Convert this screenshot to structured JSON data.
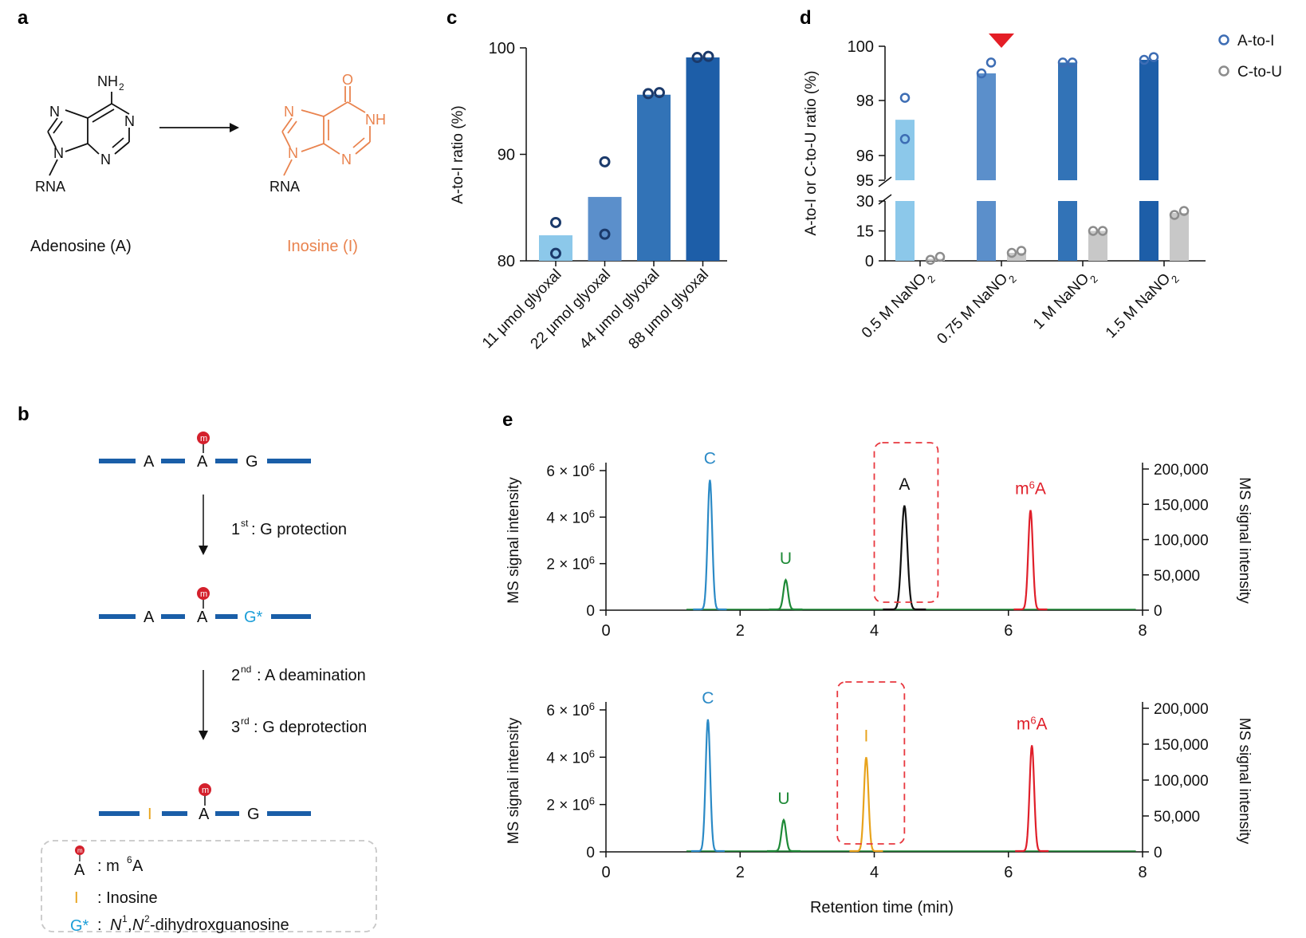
{
  "panels": {
    "a": {
      "label": "a",
      "adenosine": {
        "nh2": "NH",
        "nh2_sub": "2",
        "n_top": "N",
        "n_right": "N",
        "n_bottom": "N",
        "n9": "N",
        "rna": "RNA",
        "name": "Adenosine (A)"
      },
      "inosine": {
        "o": "O",
        "n_top": "N",
        "nh": "NH",
        "n_bottom": "N",
        "n9": "N",
        "rna": "RNA",
        "name": "Inosine (I)"
      },
      "colors": {
        "inosine": "#e9834e"
      }
    },
    "b": {
      "label": "b",
      "methyl": "m",
      "row1": [
        "A",
        "A",
        "G"
      ],
      "step1": {
        "sup": "st",
        "num": "1",
        "text": ": G protection"
      },
      "row2": [
        "A",
        "A",
        "G*"
      ],
      "step2": {
        "sup": "nd",
        "num": "2",
        "text": ": A deamination"
      },
      "step3": {
        "sup": "rd",
        "num": "3",
        "text": ": G deprotection"
      },
      "row3": [
        "I",
        "A",
        "G"
      ],
      "legend": {
        "m6a_glyph": "A",
        "m6a_text": ": m",
        "m6a_sup": "6",
        "m6a_tail": "A",
        "ino_glyph": "I",
        "ino_text": ": Inosine",
        "g_glyph": "G*",
        "g_text1": ": ",
        "g_n1": "N",
        "g_sup1": "1",
        "g_comma": ",",
        "g_n2": "N",
        "g_sup2": "2",
        "g_tail": "-dihydroxguanosine"
      },
      "colors": {
        "strand": "#1a5ea8",
        "methyl": "#d4202c",
        "inosine": "#e8a31c",
        "gstar": "#1c9ed8"
      }
    },
    "e": {
      "label": "e"
    }
  },
  "chart_data": [
    {
      "id": "c",
      "label": "c",
      "type": "bar",
      "categories": [
        "11 μmol glyoxal",
        "22 μmol glyoxal",
        "44 μmol glyoxal",
        "88 μmol glyoxal"
      ],
      "values": [
        82.4,
        86.0,
        95.6,
        99.1
      ],
      "points": [
        [
          83.6,
          80.7
        ],
        [
          89.3,
          82.5
        ],
        [
          95.7,
          95.8
        ],
        [
          99.1,
          99.2
        ]
      ],
      "ylabel": "A-to-I ratio (%)",
      "ylim": [
        80,
        100
      ],
      "yticks": [
        "80",
        "90",
        "100"
      ],
      "bar_colors": [
        "#8cc8ea",
        "#5b8fcb",
        "#3273b7",
        "#1d5ea8"
      ],
      "point_color": "#1b3a6b"
    },
    {
      "id": "d",
      "label": "d",
      "type": "bar",
      "categories": [
        "0.5 M NaNO",
        "0.75 M NaNO",
        "1 M NaNO",
        "1.5 M NaNO"
      ],
      "category_sub": "2",
      "ylabel": "A-to-I or C-to-U ratio (%)",
      "upper_ylim": [
        95,
        100
      ],
      "lower_ylim": [
        0,
        30
      ],
      "upper_ticks": [
        "95",
        "96",
        "98",
        "100"
      ],
      "lower_ticks": [
        "0",
        "15",
        "30"
      ],
      "series": [
        {
          "name": "A-to-I",
          "values": [
            97.3,
            99.0,
            99.4,
            99.5
          ],
          "points": [
            [
              98.1,
              96.6
            ],
            [
              99.0,
              99.4
            ],
            [
              99.4,
              99.4
            ],
            [
              99.5,
              99.6
            ]
          ],
          "color": "#3d6db4",
          "bar_colors": [
            "#8cc8ea",
            "#5b8fcb",
            "#3273b7",
            "#1d5ea8"
          ]
        },
        {
          "name": "C-to-U",
          "values": [
            1,
            4,
            15,
            24
          ],
          "points": [
            [
              0.5,
              2
            ],
            [
              4,
              5
            ],
            [
              15,
              15
            ],
            [
              23,
              25
            ]
          ],
          "color": "#8c8c8c",
          "bar_color": "#c8c8c8"
        }
      ],
      "marker_color": "#e41e26",
      "legend_placement": "top-right"
    },
    {
      "id": "e-top",
      "type": "line",
      "xlabel": "",
      "ylabel_left": "MS signal intensity",
      "ylabel_right": "MS signal intensity",
      "xlim": [
        0,
        8
      ],
      "xticks": [
        "0",
        "2",
        "4",
        "6",
        "8"
      ],
      "yticks_left": [
        {
          "coef": "0",
          "exp": ""
        },
        {
          "coef": "2 × 10",
          "exp": "6"
        },
        {
          "coef": "4 × 10",
          "exp": "6"
        },
        {
          "coef": "6 × 10",
          "exp": "6"
        }
      ],
      "yticks_right": [
        "0",
        "50,000",
        "100,000",
        "150,000",
        "200,000"
      ],
      "peaks": [
        {
          "name": "C",
          "sup": "",
          "rt": 1.55,
          "height": 5600000,
          "color": "#2b8ac6"
        },
        {
          "name": "U",
          "sup": "",
          "rt": 2.68,
          "height": 1300000,
          "color": "#1e8a37"
        },
        {
          "name": "A",
          "sup": "",
          "rt": 4.45,
          "height": 4500000,
          "color": "#111111"
        },
        {
          "name": "A",
          "sup": "6",
          "prefix": "m",
          "rt": 6.33,
          "height": 4300000,
          "color": "#e01f2a"
        }
      ],
      "highlight": [
        4.0,
        4.95
      ],
      "highlight_color": "#e8383f"
    },
    {
      "id": "e-bottom",
      "type": "line",
      "xlabel": "Retention time (min)",
      "ylabel_left": "MS signal intensity",
      "ylabel_right": "MS signal intensity",
      "xlim": [
        0,
        8
      ],
      "xticks": [
        "0",
        "2",
        "4",
        "6",
        "8"
      ],
      "yticks_left": [
        {
          "coef": "0",
          "exp": ""
        },
        {
          "coef": "2 × 10",
          "exp": "6"
        },
        {
          "coef": "4 × 10",
          "exp": "6"
        },
        {
          "coef": "6 × 10",
          "exp": "6"
        }
      ],
      "yticks_right": [
        "0",
        "50,000",
        "100,000",
        "150,000",
        "200,000"
      ],
      "peaks": [
        {
          "name": "C",
          "sup": "",
          "rt": 1.52,
          "height": 5600000,
          "color": "#2b8ac6"
        },
        {
          "name": "U",
          "sup": "",
          "rt": 2.65,
          "height": 1350000,
          "color": "#1e8a37"
        },
        {
          "name": "I",
          "sup": "",
          "rt": 3.88,
          "height": 4000000,
          "color": "#e8a31c"
        },
        {
          "name": "A",
          "sup": "6",
          "prefix": "m",
          "rt": 6.35,
          "height": 4500000,
          "color": "#e01f2a"
        }
      ],
      "highlight": [
        3.45,
        4.45
      ],
      "highlight_color": "#e8383f"
    }
  ]
}
